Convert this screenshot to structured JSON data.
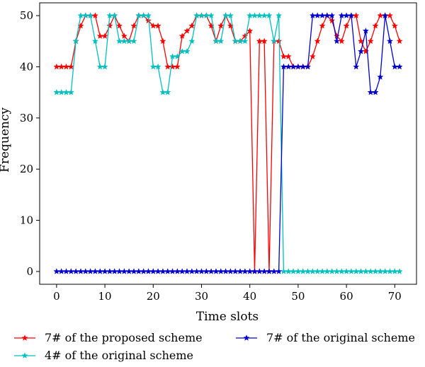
{
  "chart_data": {
    "type": "line",
    "xlabel": "Time slots",
    "ylabel": "Frequency",
    "xlim": [
      -3.5,
      74.5
    ],
    "ylim": [
      -2.5,
      52.5
    ],
    "xticks": [
      0,
      10,
      20,
      30,
      40,
      50,
      60,
      70
    ],
    "yticks": [
      0,
      10,
      20,
      30,
      40,
      50
    ],
    "grid": false,
    "legend_position": "below the plot, two columns",
    "series": [
      {
        "name": "7# of the proposed scheme",
        "color": "#ff0000",
        "marker": "star",
        "x": [
          0,
          1,
          2,
          3,
          4,
          5,
          6,
          7,
          8,
          9,
          10,
          11,
          12,
          13,
          14,
          15,
          16,
          17,
          18,
          19,
          20,
          21,
          22,
          23,
          24,
          25,
          26,
          27,
          28,
          29,
          30,
          31,
          32,
          33,
          34,
          35,
          36,
          37,
          38,
          39,
          40,
          41,
          42,
          43,
          44,
          45,
          46,
          47,
          48,
          49,
          50,
          51,
          52,
          53,
          54,
          55,
          56,
          57,
          58,
          59,
          60,
          61,
          62,
          63,
          64,
          65,
          66,
          67,
          68,
          69,
          70,
          71
        ],
        "values": [
          40,
          40,
          40,
          40,
          45,
          48,
          50,
          50,
          50,
          46,
          46,
          48,
          50,
          48,
          46,
          45,
          48,
          50,
          50,
          49,
          48,
          48,
          45,
          40,
          40,
          40,
          46,
          47,
          48,
          50,
          50,
          50,
          48,
          45,
          48,
          50,
          48,
          45,
          45,
          46,
          47,
          0,
          45,
          45,
          0,
          45,
          45,
          42,
          42,
          40,
          40,
          40,
          40,
          42,
          45,
          48,
          50,
          49,
          46,
          45,
          48,
          50,
          50,
          45,
          43,
          45,
          48,
          50,
          50,
          50,
          48,
          45
        ]
      },
      {
        "name": "4# of the original scheme",
        "color": "#00c0c0",
        "marker": "star",
        "x": [
          0,
          1,
          2,
          3,
          4,
          5,
          6,
          7,
          8,
          9,
          10,
          11,
          12,
          13,
          14,
          15,
          16,
          17,
          18,
          19,
          20,
          21,
          22,
          23,
          24,
          25,
          26,
          27,
          28,
          29,
          30,
          31,
          32,
          33,
          34,
          35,
          36,
          37,
          38,
          39,
          40,
          41,
          42,
          43,
          44,
          45,
          46,
          47,
          48,
          49,
          50,
          51,
          52,
          53,
          54,
          55,
          56,
          57,
          58,
          59,
          60,
          61,
          62,
          63,
          64,
          65,
          66,
          67,
          68,
          69,
          70,
          71
        ],
        "values": [
          35,
          35,
          35,
          35,
          45,
          50,
          50,
          50,
          45,
          40,
          40,
          50,
          50,
          45,
          45,
          45,
          45,
          50,
          50,
          50,
          40,
          40,
          35,
          35,
          42,
          42,
          43,
          43,
          45,
          50,
          50,
          50,
          50,
          45,
          45,
          50,
          50,
          45,
          45,
          45,
          50,
          50,
          50,
          50,
          50,
          45,
          50,
          0,
          0,
          0,
          0,
          0,
          0,
          0,
          0,
          0,
          0,
          0,
          0,
          0,
          0,
          0,
          0,
          0,
          0,
          0,
          0,
          0,
          0,
          0,
          0,
          0
        ]
      },
      {
        "name": "7# of the original scheme",
        "color": "#0000cd",
        "marker": "star",
        "x": [
          0,
          1,
          2,
          3,
          4,
          5,
          6,
          7,
          8,
          9,
          10,
          11,
          12,
          13,
          14,
          15,
          16,
          17,
          18,
          19,
          20,
          21,
          22,
          23,
          24,
          25,
          26,
          27,
          28,
          29,
          30,
          31,
          32,
          33,
          34,
          35,
          36,
          37,
          38,
          39,
          40,
          41,
          42,
          43,
          44,
          45,
          46,
          47,
          48,
          49,
          50,
          51,
          52,
          53,
          54,
          55,
          56,
          57,
          58,
          59,
          60,
          61,
          62,
          63,
          64,
          65,
          66,
          67,
          68,
          69,
          70,
          71
        ],
        "values": [
          0,
          0,
          0,
          0,
          0,
          0,
          0,
          0,
          0,
          0,
          0,
          0,
          0,
          0,
          0,
          0,
          0,
          0,
          0,
          0,
          0,
          0,
          0,
          0,
          0,
          0,
          0,
          0,
          0,
          0,
          0,
          0,
          0,
          0,
          0,
          0,
          0,
          0,
          0,
          0,
          0,
          0,
          0,
          0,
          0,
          0,
          0,
          40,
          40,
          40,
          40,
          40,
          40,
          50,
          50,
          50,
          50,
          50,
          45,
          50,
          50,
          50,
          40,
          43,
          47,
          35,
          35,
          38,
          50,
          45,
          40,
          40
        ]
      }
    ]
  }
}
